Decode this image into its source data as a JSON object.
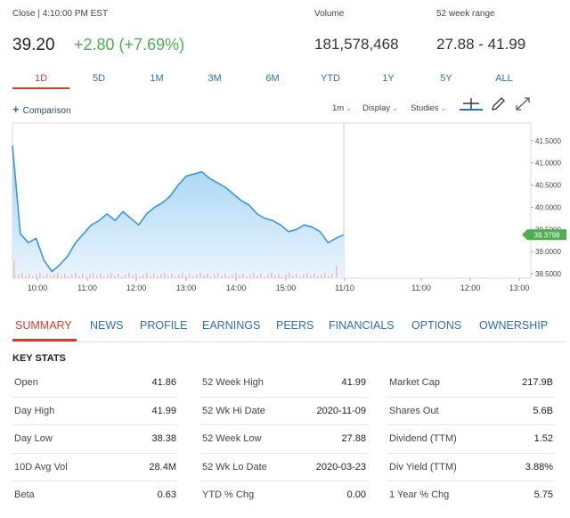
{
  "quote": {
    "close_label": "Close | 4:10:00 PM EST",
    "volume_label": "Volume",
    "range_label": "52 week range",
    "price": "39.20",
    "change": "+2.80 (+7.69%)",
    "volume": "181,578,468",
    "range": "27.88 - 41.99"
  },
  "periods": [
    "1D",
    "5D",
    "1M",
    "3M",
    "6M",
    "YTD",
    "1Y",
    "5Y",
    "ALL"
  ],
  "active_period": "1D",
  "toolbar": {
    "comparison_label": "Comparison",
    "interval_label": "1m",
    "display_label": "Display",
    "studies_label": "Studies",
    "tools": [
      "crosshair-icon",
      "pencil-icon",
      "expand-icon"
    ]
  },
  "chart_data": {
    "type": "area",
    "x_ticks": [
      "10:00",
      "11:00",
      "12:00",
      "13:00",
      "14:00",
      "15:00",
      "11/10",
      "11:00",
      "12:00",
      "13:00"
    ],
    "y_ticks": [
      "41.5000",
      "41.0000",
      "40.5000",
      "40.0000",
      "39.5000",
      "39.0000",
      "38.5000"
    ],
    "ylim": [
      38.4,
      41.9
    ],
    "last_price_label": "39.3798",
    "series": [
      {
        "values": [
          41.4,
          39.4,
          39.2,
          39.3,
          38.8,
          38.55,
          38.7,
          38.9,
          39.2,
          39.4,
          39.6,
          39.7,
          39.85,
          39.7,
          39.9,
          39.75,
          39.6,
          39.85,
          40.0,
          40.1,
          40.25,
          40.5,
          40.7,
          40.75,
          40.8,
          40.65,
          40.55,
          40.45,
          40.3,
          40.15,
          40.05,
          39.85,
          39.75,
          39.7,
          39.6,
          39.45,
          39.5,
          39.6,
          39.55,
          39.45,
          39.2,
          39.3,
          39.38
        ],
        "color": "#3d95d6"
      }
    ],
    "colors": {
      "line": "#3d95d6",
      "fill_top": "#9fd0f5",
      "fill_bottom": "#eaf5fd",
      "price_tag": "#4caf50"
    }
  },
  "section_tabs": [
    "SUMMARY",
    "NEWS",
    "PROFILE",
    "EARNINGS",
    "PEERS",
    "FINANCIALS",
    "OPTIONS",
    "OWNERSHIP"
  ],
  "active_section": "SUMMARY",
  "key_stats": {
    "title": "KEY STATS",
    "columns": [
      [
        {
          "label": "Open",
          "value": "41.86"
        },
        {
          "label": "Day High",
          "value": "41.99"
        },
        {
          "label": "Day Low",
          "value": "38.38"
        },
        {
          "label": "10D Avg Vol",
          "value": "28.4M"
        },
        {
          "label": "Beta",
          "value": "0.63"
        }
      ],
      [
        {
          "label": "52 Week High",
          "value": "41.99"
        },
        {
          "label": "52 Wk Hi Date",
          "value": "2020-11-09"
        },
        {
          "label": "52 Week Low",
          "value": "27.88"
        },
        {
          "label": "52 Wk Lo Date",
          "value": "2020-03-23"
        },
        {
          "label": "YTD % Chg",
          "value": "0.00"
        }
      ],
      [
        {
          "label": "Market Cap",
          "value": "217.9B"
        },
        {
          "label": "Shares Out",
          "value": "5.6B"
        },
        {
          "label": "Dividend (TTM)",
          "value": "1.52"
        },
        {
          "label": "Div Yield (TTM)",
          "value": "3.88%"
        },
        {
          "label": "1 Year % Chg",
          "value": "5.75"
        }
      ]
    ]
  }
}
